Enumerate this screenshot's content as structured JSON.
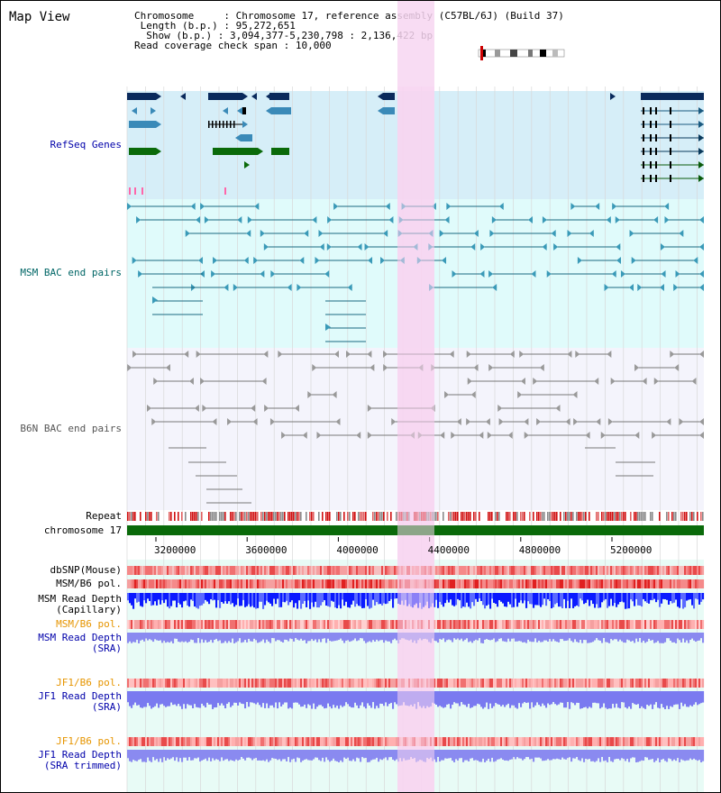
{
  "header": {
    "title": "Map View",
    "chromosome_label": "Chromosome",
    "chromosome_value": "Chromosome 17, reference assembly (C57BL/6J) (Build 37)",
    "length_label": "Length (b.p.)",
    "length_value": "95,272,651",
    "show_label": "Show (b.p.)",
    "show_value": "3,094,377-5,230,798 : 2,136,422 bp",
    "coverage_label": "Read coverage check span",
    "coverage_value": "10,000"
  },
  "tracks": {
    "refseq": {
      "label": "RefSeq Genes",
      "color": "#0000aa"
    },
    "msm_bac": {
      "label": "MSM BAC end pairs",
      "color": "#006666"
    },
    "b6n_bac": {
      "label": "B6N BAC end pairs",
      "color": "#555555"
    },
    "repeat": {
      "label": "Repeat"
    },
    "chromosome": {
      "label": "chromosome 17",
      "color": "#006600"
    },
    "dbsnp": {
      "label": "dbSNP(Mouse)"
    },
    "msm_b6_pol": {
      "label": "MSM/B6 pol."
    },
    "msm_read_depth_cap": {
      "label1": "MSM Read Depth",
      "label2": "(Capillary)"
    },
    "msm_b6_pol2": {
      "label": "MSM/B6 pol.",
      "color": "#e69500"
    },
    "msm_read_depth_sra": {
      "label1": "MSM Read Depth",
      "label2": "(SRA)",
      "color": "#0000aa"
    },
    "jf1_b6_pol": {
      "label": "JF1/B6 pol.",
      "color": "#e69500"
    },
    "jf1_read_depth_sra": {
      "label1": "JF1 Read Depth",
      "label2": "(SRA)",
      "color": "#0000aa"
    },
    "jf1_b6_pol2": {
      "label": "JF1/B6 pol.",
      "color": "#e69500"
    },
    "jf1_read_depth_trim": {
      "label1": "JF1 Read Depth",
      "label2": "(SRA trimmed)",
      "color": "#0000aa"
    }
  },
  "axis": {
    "ticks": [
      "3200000",
      "3600000",
      "4000000",
      "4400000",
      "4800000",
      "5200000"
    ]
  },
  "colors": {
    "highlight": "#f7d6f1",
    "refseq_bg": "#d6eef8",
    "msm_bg": "#e0fbfb",
    "b6n_bg": "#f4f4fc",
    "depth_bg": "#f0fff0"
  }
}
